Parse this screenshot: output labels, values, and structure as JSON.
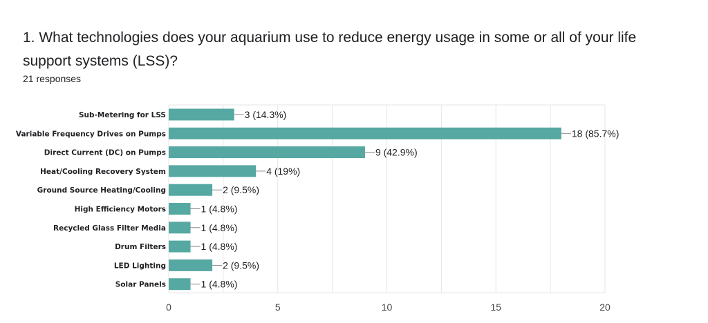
{
  "question": {
    "title": "1. What technologies does your aquarium use to reduce energy usage in some or all of your life support systems (LSS)?",
    "responses": "21 responses"
  },
  "colors": {
    "bar": "#56a8a2",
    "grid": "#e6e6e6",
    "leader": "#888888"
  },
  "chart_data": {
    "type": "bar",
    "orientation": "horizontal",
    "categories": [
      "Sub-Metering for LSS",
      "Variable Frequency Drives on Pumps",
      "Direct Current (DC) on Pumps",
      "Heat/Cooling Recovery System",
      "Ground Source Heating/Cooling",
      "High Efficiency Motors",
      "Recycled Glass Filter Media",
      "Drum Filters",
      "LED Lighting",
      "Solar Panels"
    ],
    "values": [
      3,
      18,
      9,
      4,
      2,
      1,
      1,
      1,
      2,
      1
    ],
    "data_labels": [
      "3 (14.3%)",
      "18 (85.7%)",
      "9 (42.9%)",
      "4 (19%)",
      "2 (9.5%)",
      "1 (4.8%)",
      "1 (4.8%)",
      "1 (4.8%)",
      "2 (9.5%)",
      "1 (4.8%)"
    ],
    "x_ticks": [
      "0",
      "5",
      "10",
      "15",
      "20"
    ],
    "xlim": [
      0,
      20
    ],
    "grid": true
  }
}
